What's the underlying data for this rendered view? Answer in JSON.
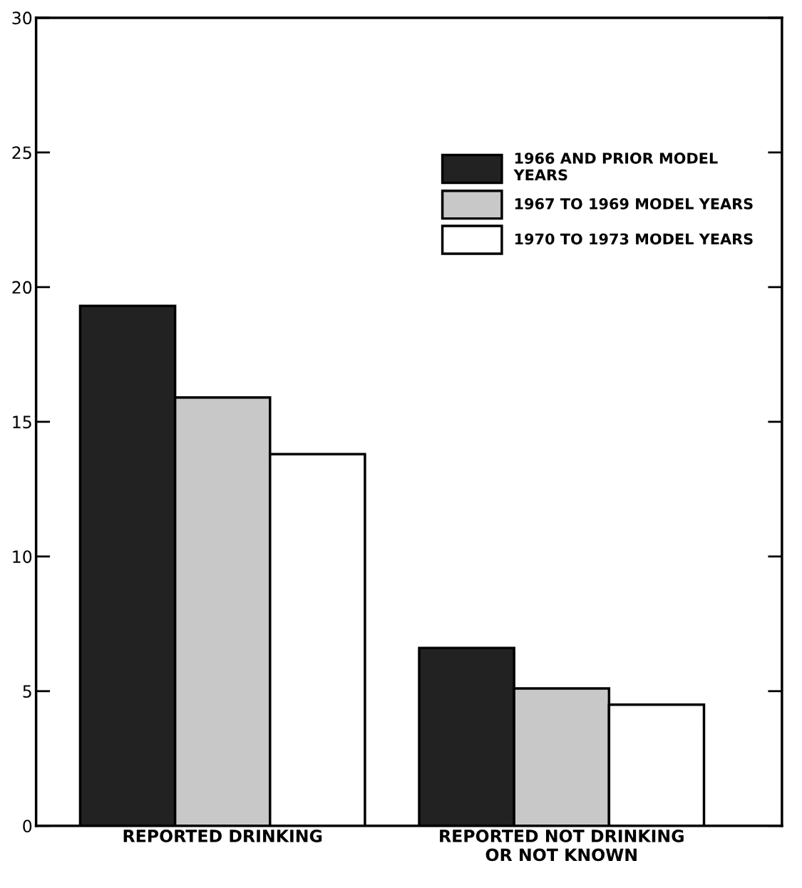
{
  "chart_data": {
    "type": "bar",
    "categories": [
      "REPORTED DRINKING",
      "REPORTED NOT DRINKING\nOR NOT KNOWN"
    ],
    "series": [
      {
        "name": "1966 AND PRIOR MODEL\nYEARS",
        "color": "#222222",
        "values": [
          19.3,
          6.6
        ]
      },
      {
        "name": "1967 TO 1969 MODEL YEARS",
        "color": "#c8c8c8",
        "values": [
          15.9,
          5.1
        ]
      },
      {
        "name": "1970 TO 1973 MODEL YEARS",
        "color": "#ffffff",
        "values": [
          13.8,
          4.5
        ]
      }
    ],
    "ylim": [
      0,
      30
    ],
    "yticks": [
      0,
      5,
      10,
      15,
      20,
      25,
      30
    ],
    "grid": false,
    "legend": "top right"
  }
}
